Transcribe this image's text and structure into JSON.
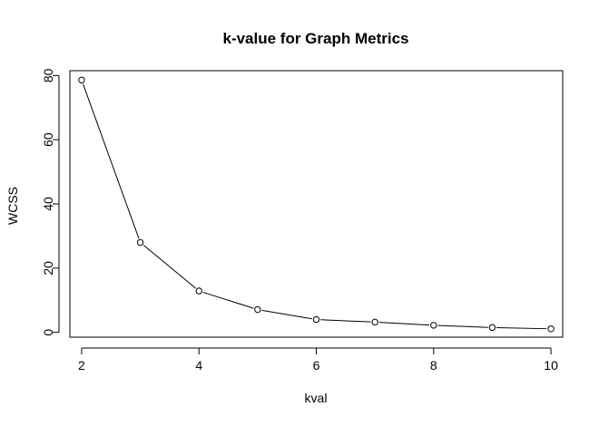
{
  "chart_data": {
    "type": "line",
    "title": "k-value for Graph Metrics",
    "xlabel": "kval",
    "ylabel": "WCSS",
    "x": [
      2,
      3,
      4,
      5,
      6,
      7,
      8,
      9,
      10
    ],
    "series": [
      {
        "values": [
          78.6,
          28.0,
          12.9,
          7.1,
          4.0,
          3.2,
          2.2,
          1.5,
          1.1
        ]
      }
    ],
    "xlim": [
      1.8,
      10.2
    ],
    "ylim": [
      -1.5,
      81.5
    ],
    "xticks": [
      2,
      4,
      6,
      8,
      10
    ],
    "yticks": [
      0,
      20,
      40,
      60,
      80
    ],
    "grid": false,
    "legend": "none",
    "marker": "open-circle",
    "line_color": "#000000"
  }
}
